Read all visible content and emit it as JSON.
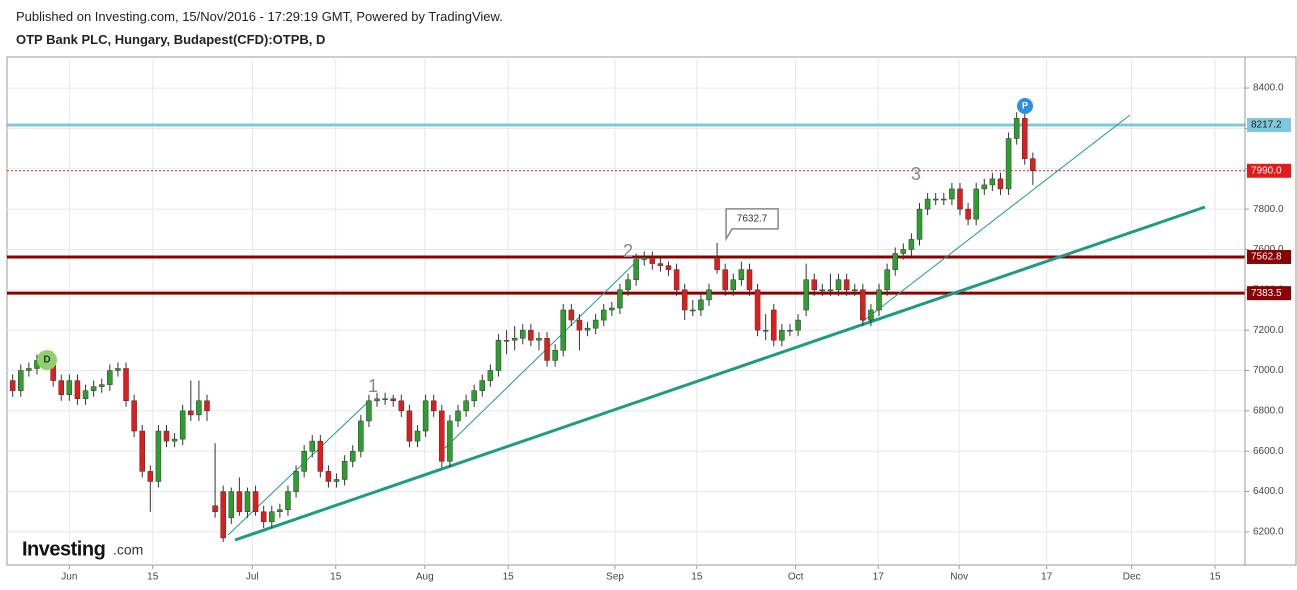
{
  "header": {
    "published": "Published on Investing.com, 15/Nov/2016 - 17:29:19 GMT, Powered by TradingView.",
    "title": "OTP Bank PLC, Hungary, Budapest(CFD):OTPB, D"
  },
  "logo": {
    "name": "Investing",
    "suffix": ".com"
  },
  "chart_data": {
    "type": "candlestick",
    "up_color": "#2ca02c",
    "down_color": "#e31b1b",
    "grid": true,
    "ylim": [
      6036,
      8554
    ],
    "yticks": [
      {
        "value": 6200,
        "label": "6200.0"
      },
      {
        "value": 6400,
        "label": "6400.0"
      },
      {
        "value": 6600,
        "label": "6600.0"
      },
      {
        "value": 6800,
        "label": "6800.0"
      },
      {
        "value": 7000,
        "label": "7000.0"
      },
      {
        "value": 7200,
        "label": "7200.0"
      },
      {
        "value": 7400,
        "label": "7400.0"
      },
      {
        "value": 7600,
        "label": "7600.0"
      },
      {
        "value": 7800,
        "label": "7800.0"
      },
      {
        "value": 8000,
        "label": "8000.0"
      },
      {
        "value": 8200,
        "label": "8200.0"
      },
      {
        "value": 8400,
        "label": "8400.0"
      }
    ],
    "xlim": [
      -0.7,
      152.2
    ],
    "xticks": [
      {
        "value": 7.0,
        "label": "Jun"
      },
      {
        "value": 17.3,
        "label": "15"
      },
      {
        "value": 29.6,
        "label": "Jul"
      },
      {
        "value": 39.9,
        "label": "15"
      },
      {
        "value": 50.9,
        "label": "Aug"
      },
      {
        "value": 61.2,
        "label": "15"
      },
      {
        "value": 74.4,
        "label": "Sep"
      },
      {
        "value": 84.5,
        "label": "15"
      },
      {
        "value": 96.7,
        "label": "Oct"
      },
      {
        "value": 106.9,
        "label": "17"
      },
      {
        "value": 116.9,
        "label": "Nov"
      },
      {
        "value": 127.7,
        "label": "17"
      },
      {
        "value": 138.2,
        "label": "Dec"
      },
      {
        "value": 148.5,
        "label": "15"
      }
    ],
    "levels": [
      {
        "value": 8217.2,
        "color": "#7ec8dc",
        "text_color": "#222",
        "dotted": false,
        "width": 3
      },
      {
        "value": 7990,
        "label": "7990.0",
        "color": "#e31b1b",
        "text_color": "#fff",
        "dotted": true,
        "width": 1
      },
      {
        "value": 7562.8,
        "color": "#8b0000",
        "text_color": "#fff",
        "dotted": false,
        "width": 3
      },
      {
        "value": 7383.5,
        "color": "#8b0000",
        "text_color": "#fff",
        "dotted": false,
        "width": 3
      }
    ],
    "callout_candle": 87,
    "waves": [
      "1",
      "2",
      "3"
    ],
    "markers": [
      "D",
      "P"
    ],
    "candles": [
      [
        6950,
        6980,
        6870,
        6900
      ],
      [
        6900,
        7030,
        6870,
        7000
      ],
      [
        7000,
        7040,
        6970,
        7010
      ],
      [
        7010,
        7080,
        6980,
        7050
      ],
      [
        7050,
        7080,
        7010,
        7040
      ],
      [
        7040,
        7070,
        6920,
        6950
      ],
      [
        6950,
        6980,
        6850,
        6880
      ],
      [
        6880,
        6980,
        6850,
        6950
      ],
      [
        6950,
        6980,
        6830,
        6860
      ],
      [
        6860,
        6930,
        6830,
        6900
      ],
      [
        6900,
        6950,
        6870,
        6920
      ],
      [
        6920,
        6960,
        6890,
        6930
      ],
      [
        6930,
        7030,
        6900,
        7000
      ],
      [
        7000,
        7040,
        6970,
        7010
      ],
      [
        7010,
        7040,
        6820,
        6850
      ],
      [
        6850,
        6880,
        6670,
        6700
      ],
      [
        6700,
        6730,
        6470,
        6500
      ],
      [
        6500,
        6530,
        6300,
        6450
      ],
      [
        6450,
        6730,
        6420,
        6700
      ],
      [
        6700,
        6730,
        6620,
        6650
      ],
      [
        6650,
        6690,
        6620,
        6660
      ],
      [
        6660,
        6830,
        6630,
        6800
      ],
      [
        6800,
        6950,
        6750,
        6780
      ],
      [
        6780,
        6950,
        6750,
        6850
      ],
      [
        6850,
        6880,
        6750,
        6800
      ],
      [
        6330,
        6640,
        6270,
        6300
      ],
      [
        6400,
        6430,
        6150,
        6170
      ],
      [
        6270,
        6420,
        6240,
        6400
      ],
      [
        6400,
        6470,
        6280,
        6300
      ],
      [
        6300,
        6420,
        6270,
        6400
      ],
      [
        6400,
        6430,
        6280,
        6300
      ],
      [
        6300,
        6330,
        6220,
        6250
      ],
      [
        6250,
        6330,
        6220,
        6300
      ],
      [
        6300,
        6340,
        6270,
        6310
      ],
      [
        6310,
        6430,
        6280,
        6400
      ],
      [
        6400,
        6530,
        6370,
        6500
      ],
      [
        6500,
        6630,
        6470,
        6600
      ],
      [
        6600,
        6680,
        6570,
        6650
      ],
      [
        6650,
        6680,
        6470,
        6500
      ],
      [
        6500,
        6530,
        6420,
        6450
      ],
      [
        6450,
        6490,
        6420,
        6460
      ],
      [
        6460,
        6580,
        6430,
        6550
      ],
      [
        6550,
        6630,
        6520,
        6600
      ],
      [
        6600,
        6780,
        6570,
        6750
      ],
      [
        6750,
        6880,
        6720,
        6850
      ],
      [
        6850,
        6890,
        6820,
        6860
      ],
      [
        6860,
        6890,
        6830,
        6860
      ],
      [
        6860,
        6880,
        6820,
        6850
      ],
      [
        6850,
        6880,
        6770,
        6800
      ],
      [
        6800,
        6830,
        6620,
        6650
      ],
      [
        6650,
        6730,
        6620,
        6700
      ],
      [
        6700,
        6880,
        6670,
        6850
      ],
      [
        6850,
        6880,
        6770,
        6800
      ],
      [
        6800,
        6830,
        6520,
        6550
      ],
      [
        6550,
        6780,
        6520,
        6750
      ],
      [
        6750,
        6830,
        6720,
        6800
      ],
      [
        6800,
        6880,
        6770,
        6850
      ],
      [
        6850,
        6930,
        6820,
        6900
      ],
      [
        6900,
        6980,
        6870,
        6950
      ],
      [
        6950,
        7030,
        6920,
        7000
      ],
      [
        7000,
        7180,
        6970,
        7150
      ],
      [
        7150,
        7200,
        7080,
        7150
      ],
      [
        7150,
        7220,
        7100,
        7160
      ],
      [
        7160,
        7230,
        7130,
        7200
      ],
      [
        7200,
        7230,
        7120,
        7150
      ],
      [
        7150,
        7190,
        7100,
        7160
      ],
      [
        7160,
        7190,
        7020,
        7050
      ],
      [
        7050,
        7130,
        7020,
        7100
      ],
      [
        7100,
        7330,
        7070,
        7300
      ],
      [
        7300,
        7330,
        7220,
        7250
      ],
      [
        7250,
        7280,
        7100,
        7200
      ],
      [
        7200,
        7240,
        7170,
        7210
      ],
      [
        7210,
        7280,
        7180,
        7250
      ],
      [
        7250,
        7330,
        7220,
        7300
      ],
      [
        7300,
        7340,
        7270,
        7310
      ],
      [
        7310,
        7430,
        7280,
        7400
      ],
      [
        7400,
        7480,
        7370,
        7450
      ],
      [
        7450,
        7580,
        7420,
        7550
      ],
      [
        7550,
        7590,
        7520,
        7560
      ],
      [
        7560,
        7590,
        7500,
        7530
      ],
      [
        7530,
        7560,
        7490,
        7520
      ],
      [
        7520,
        7540,
        7470,
        7500
      ],
      [
        7500,
        7530,
        7370,
        7400
      ],
      [
        7400,
        7430,
        7250,
        7300
      ],
      [
        7300,
        7350,
        7270,
        7300
      ],
      [
        7300,
        7380,
        7270,
        7350
      ],
      [
        7350,
        7430,
        7320,
        7400
      ],
      [
        7560,
        7632.7,
        7480,
        7500
      ],
      [
        7500,
        7530,
        7370,
        7400
      ],
      [
        7400,
        7480,
        7370,
        7450
      ],
      [
        7450,
        7540,
        7420,
        7500
      ],
      [
        7500,
        7530,
        7370,
        7400
      ],
      [
        7400,
        7430,
        7170,
        7200
      ],
      [
        7200,
        7280,
        7150,
        7200
      ],
      [
        7300,
        7330,
        7120,
        7150
      ],
      [
        7150,
        7230,
        7120,
        7200
      ],
      [
        7200,
        7230,
        7170,
        7200
      ],
      [
        7200,
        7280,
        7170,
        7250
      ],
      [
        7300,
        7530,
        7270,
        7450
      ],
      [
        7450,
        7480,
        7370,
        7400
      ],
      [
        7400,
        7430,
        7370,
        7400
      ],
      [
        7400,
        7480,
        7370,
        7400
      ],
      [
        7400,
        7480,
        7370,
        7450
      ],
      [
        7450,
        7480,
        7370,
        7400
      ],
      [
        7400,
        7430,
        7370,
        7400
      ],
      [
        7400,
        7430,
        7220,
        7250
      ],
      [
        7250,
        7330,
        7220,
        7300
      ],
      [
        7300,
        7430,
        7270,
        7400
      ],
      [
        7400,
        7530,
        7370,
        7500
      ],
      [
        7500,
        7610,
        7470,
        7580
      ],
      [
        7580,
        7630,
        7550,
        7600
      ],
      [
        7600,
        7680,
        7570,
        7650
      ],
      [
        7650,
        7830,
        7620,
        7800
      ],
      [
        7800,
        7880,
        7770,
        7850
      ],
      [
        7850,
        7880,
        7820,
        7850
      ],
      [
        7850,
        7880,
        7820,
        7850
      ],
      [
        7850,
        7930,
        7820,
        7900
      ],
      [
        7900,
        7930,
        7770,
        7800
      ],
      [
        7800,
        7830,
        7720,
        7750
      ],
      [
        7750,
        7930,
        7720,
        7900
      ],
      [
        7900,
        7950,
        7870,
        7920
      ],
      [
        7920,
        7980,
        7890,
        7950
      ],
      [
        7950,
        7980,
        7870,
        7900
      ],
      [
        7900,
        8180,
        7870,
        8150
      ],
      [
        8150,
        8280,
        8120,
        8250
      ],
      [
        8250,
        8280,
        8020,
        8050
      ],
      [
        8050,
        8080,
        7920,
        7990
      ]
    ]
  }
}
